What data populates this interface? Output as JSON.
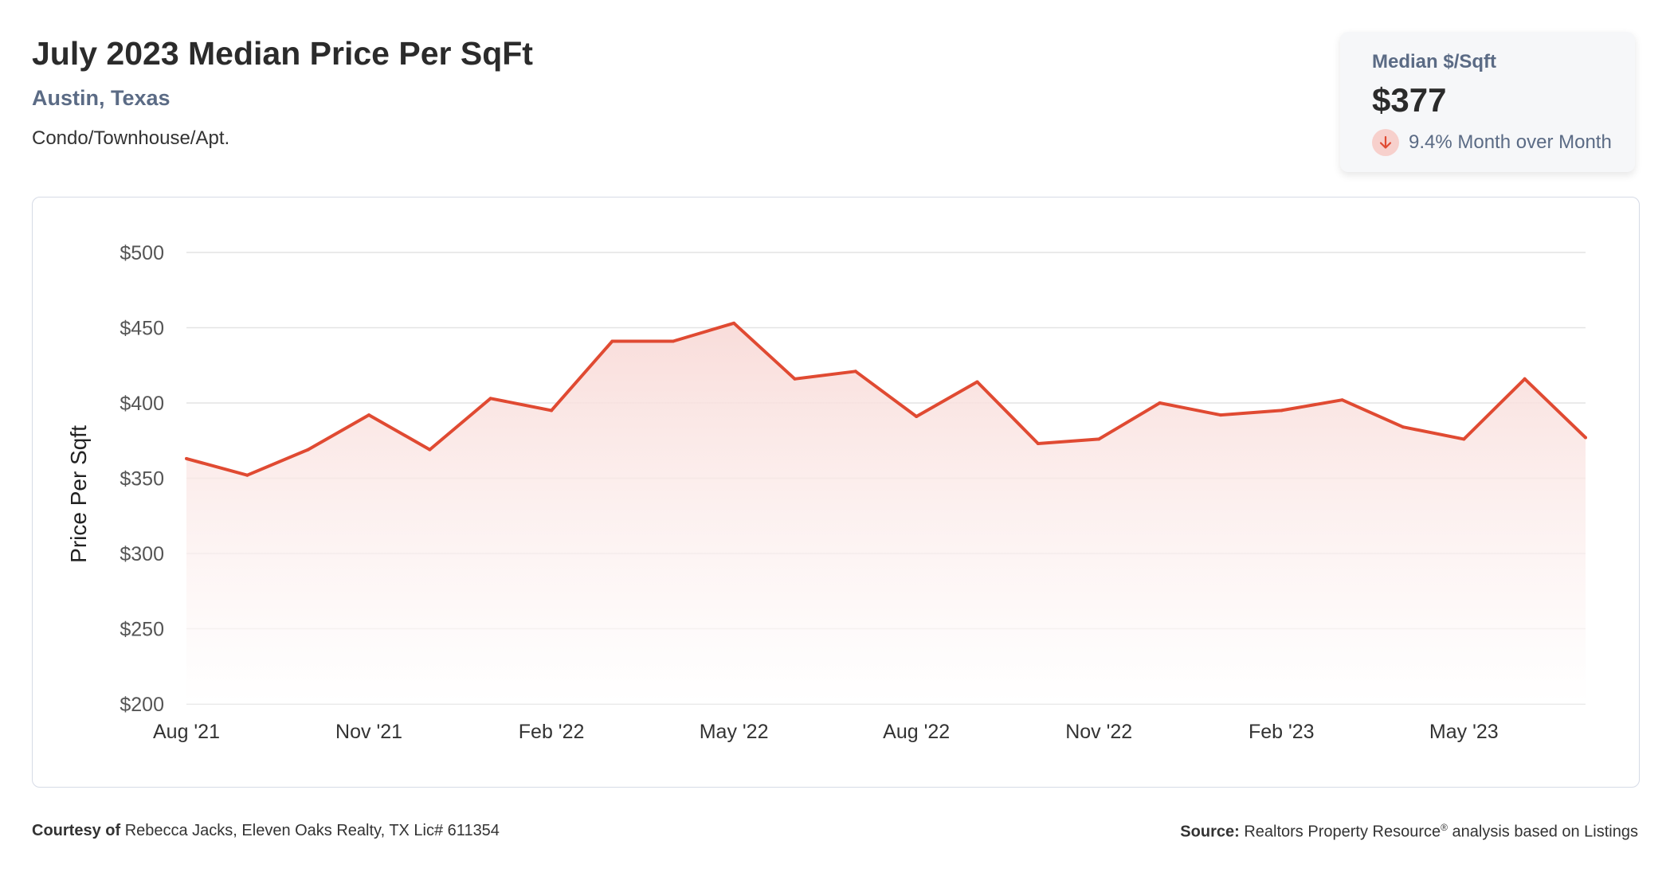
{
  "header": {
    "title": "July 2023 Median Price Per SqFt",
    "location": "Austin, Texas",
    "property_type": "Condo/Townhouse/Apt."
  },
  "stat_card": {
    "label": "Median $/Sqft",
    "value": "$377",
    "change_text": "9.4% Month over Month",
    "change_direction": "down",
    "change_icon": "arrow-down-icon"
  },
  "colors": {
    "line": "#e04a32",
    "fill_top": "#f8d9d6",
    "grid": "#e4e4e4",
    "label_muted": "#5b6b85"
  },
  "chart_data": {
    "type": "area",
    "title": "",
    "xlabel": "",
    "ylabel": "Price Per Sqft",
    "ylim": [
      200,
      500
    ],
    "y_ticks": [
      200,
      250,
      300,
      350,
      400,
      450,
      500
    ],
    "y_tick_labels": [
      "$200",
      "$250",
      "$300",
      "$350",
      "$400",
      "$450",
      "$500"
    ],
    "x_tick_labels": [
      "Aug '21",
      "Nov '21",
      "Feb '22",
      "May '22",
      "Aug '22",
      "Nov '22",
      "Feb '23",
      "May '23"
    ],
    "x_tick_indices": [
      0,
      3,
      6,
      9,
      12,
      15,
      18,
      21
    ],
    "categories": [
      "Aug '21",
      "Sep '21",
      "Oct '21",
      "Nov '21",
      "Dec '21",
      "Jan '22",
      "Feb '22",
      "Mar '22",
      "Apr '22",
      "May '22",
      "Jun '22",
      "Jul '22",
      "Aug '22",
      "Sep '22",
      "Oct '22",
      "Nov '22",
      "Dec '22",
      "Jan '23",
      "Feb '23",
      "Mar '23",
      "Apr '23",
      "May '23",
      "Jun '23",
      "Jul '23"
    ],
    "values": [
      363,
      352,
      369,
      392,
      369,
      403,
      395,
      441,
      441,
      453,
      416,
      421,
      391,
      414,
      373,
      376,
      400,
      392,
      395,
      402,
      384,
      376,
      416,
      377
    ],
    "grid": true,
    "legend": "none"
  },
  "footer": {
    "courtesy_label": "Courtesy of",
    "courtesy_text": "Rebecca Jacks, Eleven Oaks Realty, TX Lic# 611354",
    "source_label": "Source:",
    "source_name": "Realtors Property Resource",
    "source_mark": "®",
    "source_rest": "analysis based on Listings"
  }
}
